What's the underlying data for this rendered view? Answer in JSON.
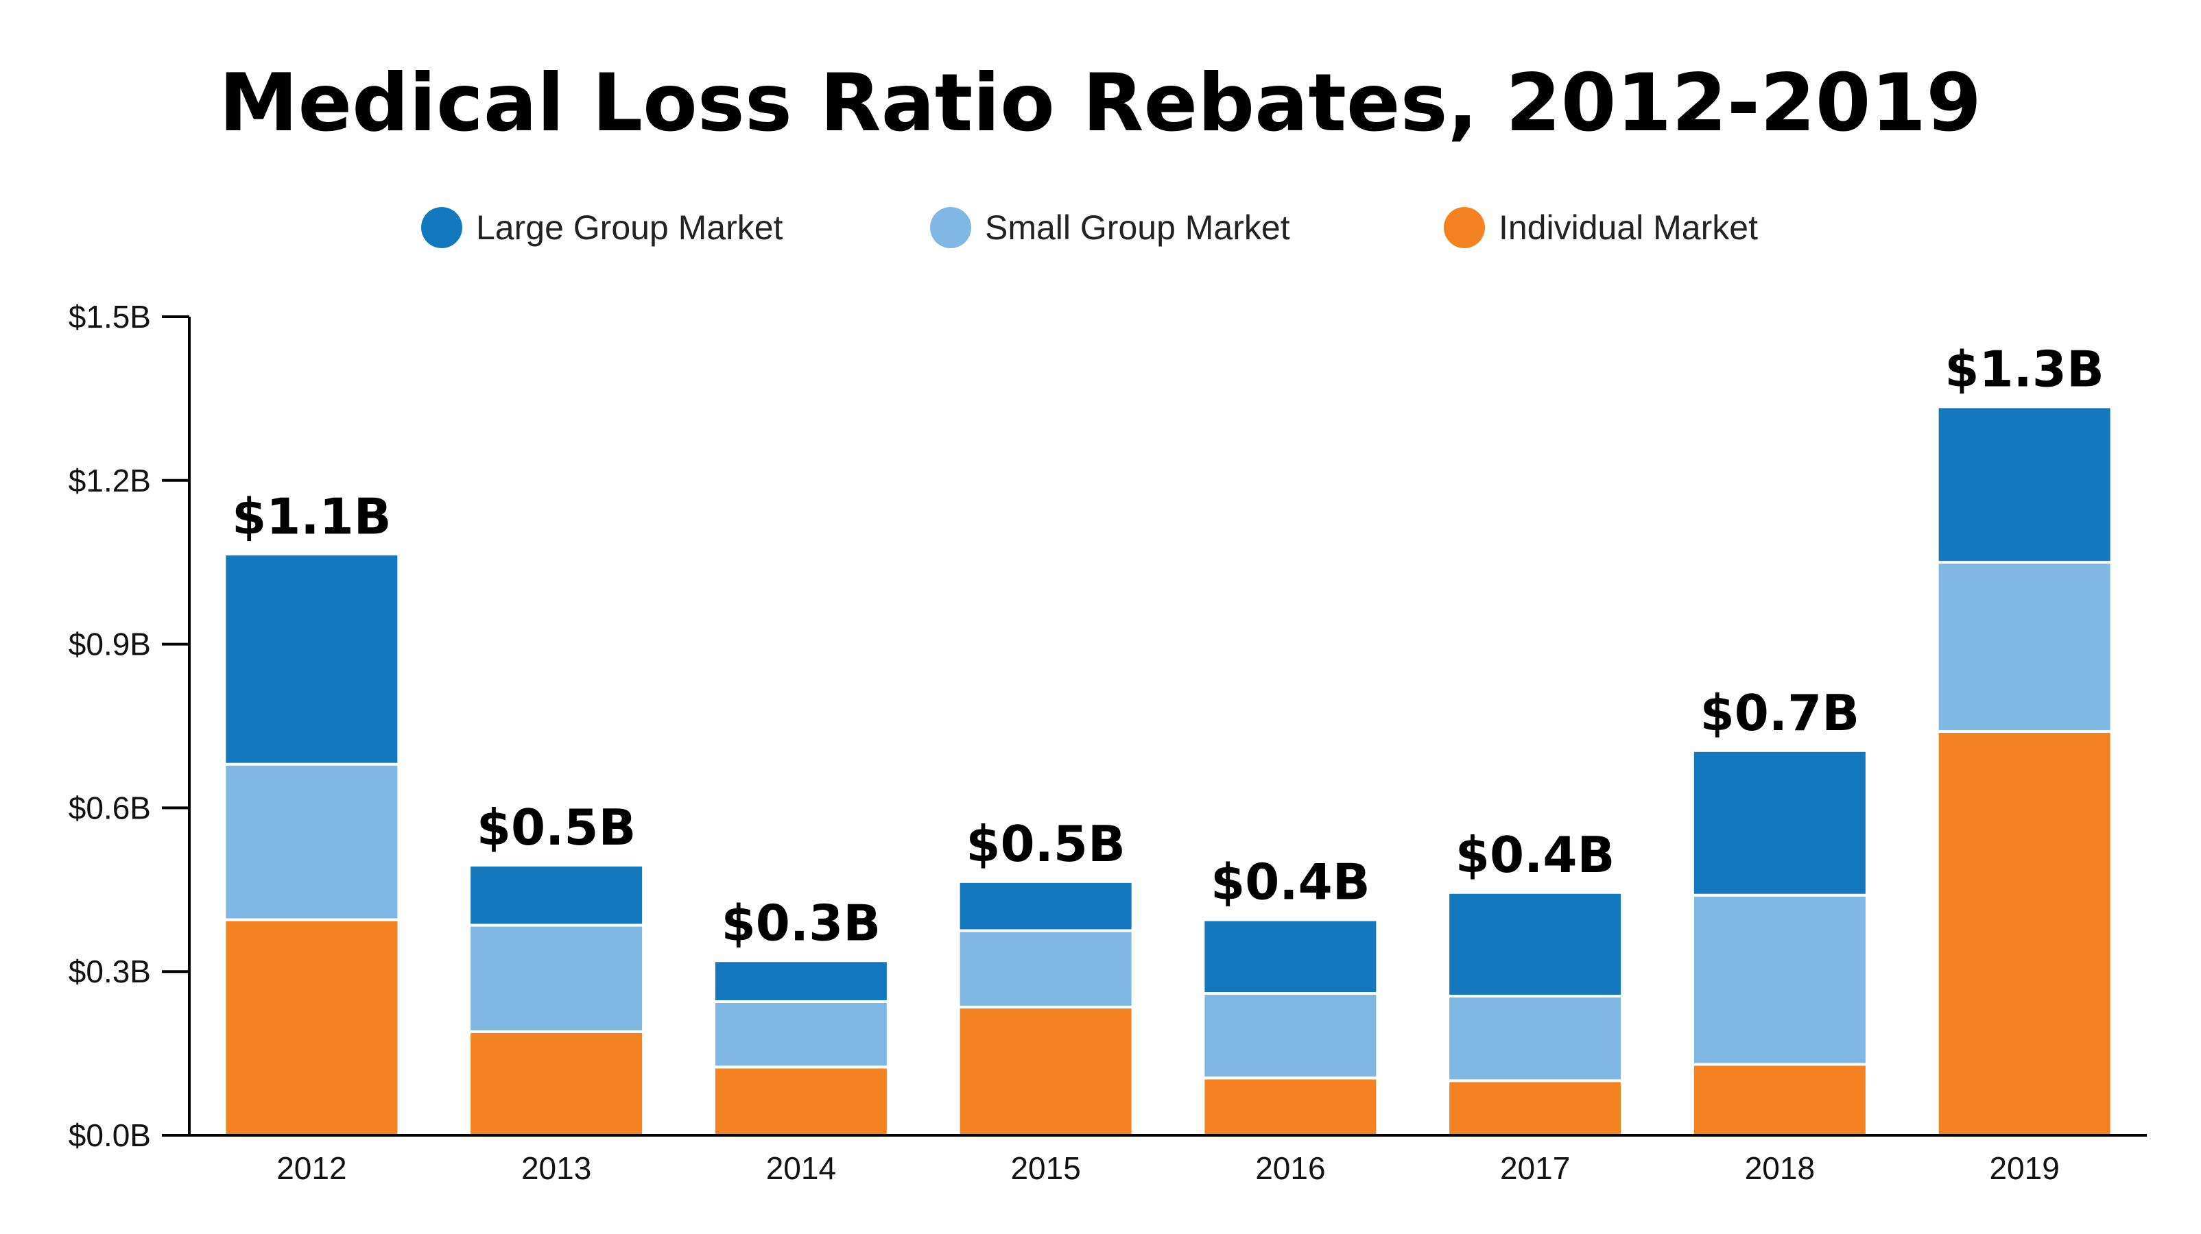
{
  "chart_data": {
    "type": "bar",
    "stacked": true,
    "title": "Medical Loss Ratio Rebates, 2012-2019",
    "xlabel": "",
    "ylabel": "",
    "ylim": [
      0,
      1.5
    ],
    "yticks": [
      {
        "value": 0.0,
        "label": "$0.0B"
      },
      {
        "value": 0.3,
        "label": "$0.3B"
      },
      {
        "value": 0.6,
        "label": "$0.6B"
      },
      {
        "value": 0.9,
        "label": "$0.9B"
      },
      {
        "value": 1.2,
        "label": "$1.2B"
      },
      {
        "value": 1.5,
        "label": "$1.5B"
      }
    ],
    "categories": [
      "2012",
      "2013",
      "2014",
      "2015",
      "2016",
      "2017",
      "2018",
      "2019"
    ],
    "series": [
      {
        "name": "Individual Market",
        "color": "#F58220",
        "values": [
          0.395,
          0.19,
          0.125,
          0.235,
          0.105,
          0.1,
          0.13,
          0.74
        ]
      },
      {
        "name": "Small Group Market",
        "color": "#7FB8E3",
        "values": [
          0.285,
          0.195,
          0.12,
          0.14,
          0.155,
          0.155,
          0.31,
          0.31
        ]
      },
      {
        "name": "Large Group Market",
        "color": "#1478BE",
        "values": [
          0.385,
          0.11,
          0.075,
          0.09,
          0.135,
          0.19,
          0.265,
          0.285
        ]
      }
    ],
    "legend_order": [
      "Large Group Market",
      "Small Group Market",
      "Individual Market"
    ],
    "legend_position": "top-center",
    "totals": [
      {
        "value": 1.065,
        "label": "$1.1B"
      },
      {
        "value": 0.495,
        "label": "$0.5B"
      },
      {
        "value": 0.32,
        "label": "$0.3B"
      },
      {
        "value": 0.465,
        "label": "$0.5B"
      },
      {
        "value": 0.395,
        "label": "$0.4B"
      },
      {
        "value": 0.445,
        "label": "$0.4B"
      },
      {
        "value": 0.705,
        "label": "$0.7B"
      },
      {
        "value": 1.335,
        "label": "$1.3B"
      }
    ],
    "grid": false
  }
}
